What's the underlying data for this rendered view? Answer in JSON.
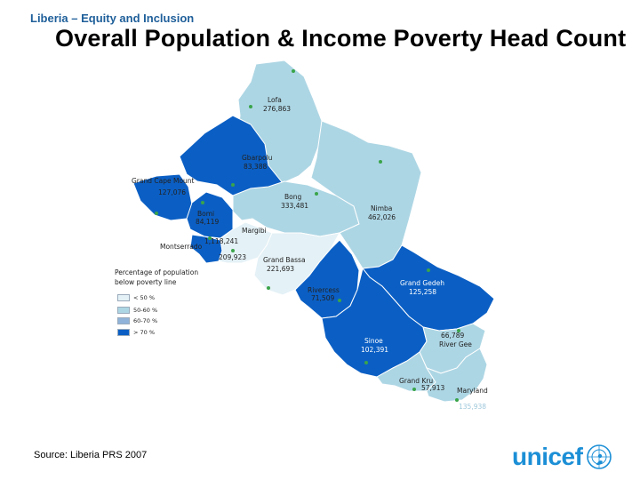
{
  "header": {
    "kicker": "Liberia – Equity and Inclusion",
    "title": "Overall Population & Income Poverty Head Count"
  },
  "colors": {
    "lt50": "#e4f1f6",
    "c50_60": "#add6e4",
    "c60_70": "#8fb3d9",
    "gt70": "#0b5fc4",
    "title_kicker": "#1f5f9a",
    "logo": "#1c8fd6"
  },
  "counties": {
    "lofa": {
      "name": "Lofa",
      "value": "276,863"
    },
    "gbarpolu": {
      "name": "Gbarpolu",
      "value": "83,388"
    },
    "grand_cape_mount": {
      "name": "Grand Cape Mount",
      "value": "127,076"
    },
    "bomi": {
      "name": "Bomi",
      "value": "84,119"
    },
    "bong": {
      "name": "Bong",
      "value": "333,481"
    },
    "nimba": {
      "name": "Nimba",
      "value": "462,026"
    },
    "margibi": {
      "name": "Margibi",
      "value": "209,923"
    },
    "montserrado": {
      "name": "Montserrado",
      "value": "1,118,241"
    },
    "grand_bassa": {
      "name": "Grand Bassa",
      "value": "221,693"
    },
    "rivercess": {
      "name": "Rivercess",
      "value": "71,509"
    },
    "grand_gedeh": {
      "name": "Grand Gedeh",
      "value": "125,258"
    },
    "sinoe": {
      "name": "Sinoe",
      "value": "102,391"
    },
    "river_gee": {
      "name": "River Gee",
      "value": "66,789"
    },
    "grand_kru": {
      "name": "Grand Kru",
      "value": "57,913"
    },
    "maryland": {
      "name": "Maryland",
      "value": "135,938"
    }
  },
  "legend": {
    "title_line1": "Percentage of population",
    "title_line2": "below poverty line",
    "items": [
      {
        "label": "< 50 %",
        "color": "#e4f1f6"
      },
      {
        "label": "50-60 %",
        "color": "#add6e4"
      },
      {
        "label": "60-70 %",
        "color": "#8fb3d9"
      },
      {
        "label": "> 70 %",
        "color": "#0b5fc4"
      }
    ]
  },
  "source": "Source: Liberia PRS 2007",
  "logo": {
    "text": "unicef",
    "icon": "unicef-emblem-icon"
  }
}
